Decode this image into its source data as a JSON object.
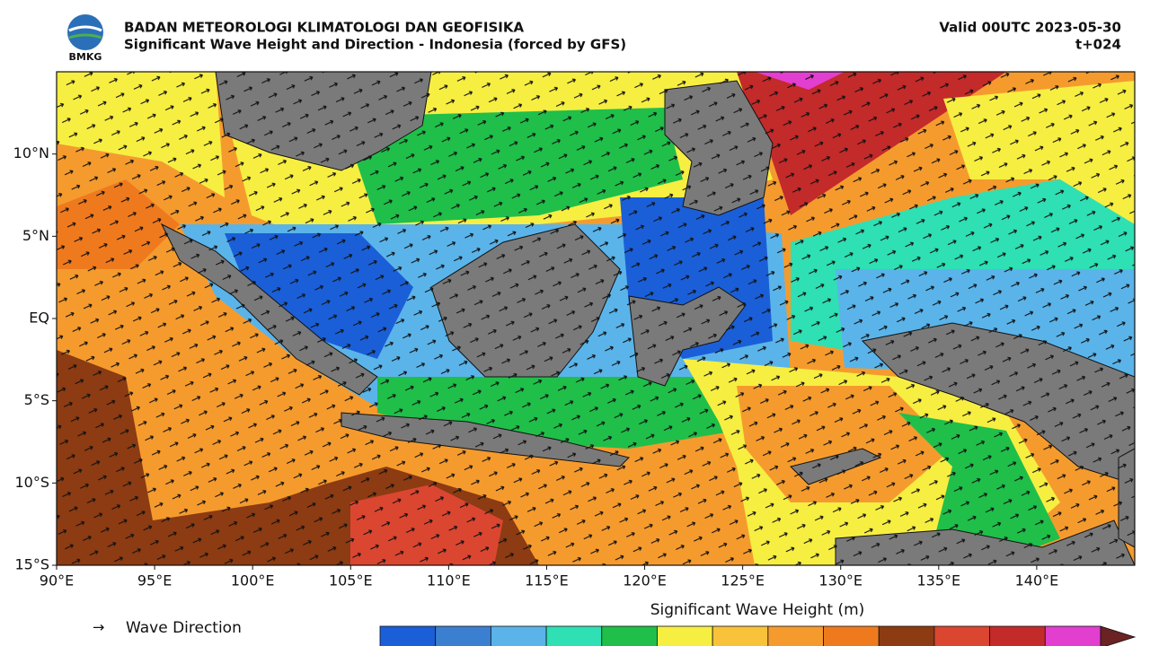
{
  "header": {
    "logo": "BMKG",
    "org": "BADAN METEOROLOGI KLIMATOLOGI DAN GEOFISIKA",
    "subtitle": "Significant Wave Height and Direction - Indonesia (forced by GFS)",
    "valid": "Valid 00UTC 2023-05-30",
    "step": "t+024"
  },
  "map": {
    "xlim": [
      90,
      145
    ],
    "ylim": [
      -15,
      15
    ],
    "xticks": [
      {
        "value": 90,
        "label": "90°E"
      },
      {
        "value": 95,
        "label": "95°E"
      },
      {
        "value": 100,
        "label": "100°E"
      },
      {
        "value": 105,
        "label": "105°E"
      },
      {
        "value": 110,
        "label": "110°E"
      },
      {
        "value": 115,
        "label": "115°E"
      },
      {
        "value": 120,
        "label": "120°E"
      },
      {
        "value": 125,
        "label": "125°E"
      },
      {
        "value": 130,
        "label": "130°E"
      },
      {
        "value": 135,
        "label": "135°E"
      },
      {
        "value": 140,
        "label": "140°E"
      }
    ],
    "yticks": [
      {
        "value": 10,
        "label": "10°N"
      },
      {
        "value": 5,
        "label": "5°N"
      },
      {
        "value": 0,
        "label": "EQ"
      },
      {
        "value": -5,
        "label": "5°S"
      },
      {
        "value": -10,
        "label": "10°S"
      },
      {
        "value": -15,
        "label": "15°S"
      }
    ]
  },
  "legend": {
    "arrow": "→",
    "label": "Wave Direction"
  },
  "colorbar": {
    "title": "Significant Wave Height (m)",
    "colors": [
      "#1a5fd8",
      "#3b7fd0",
      "#5ab4ea",
      "#2ee0b4",
      "#1fbf4a",
      "#f7ee42",
      "#f8c23a",
      "#f59b2e",
      "#ef7a1e",
      "#8c3b12",
      "#db4631",
      "#c32a2a",
      "#e23fd0"
    ],
    "extend_color": "#6b2222"
  }
}
